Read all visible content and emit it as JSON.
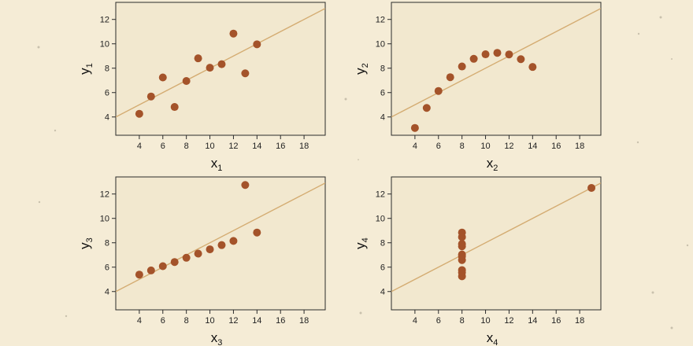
{
  "chart_data": [
    {
      "type": "scatter",
      "xlabel": "x",
      "xlabel_sub": "1",
      "ylabel": "y",
      "ylabel_sub": "1",
      "xlim": [
        2,
        19.8
      ],
      "ylim": [
        2.5,
        13.4
      ],
      "xticks": [
        4,
        6,
        8,
        10,
        12,
        14,
        16,
        18
      ],
      "yticks": [
        4,
        6,
        8,
        10,
        12
      ],
      "x": [
        10,
        8,
        13,
        9,
        11,
        14,
        6,
        4,
        12,
        7,
        5
      ],
      "y": [
        8.04,
        6.95,
        7.58,
        8.81,
        8.33,
        9.96,
        7.24,
        4.26,
        10.84,
        4.82,
        5.68
      ],
      "fit": {
        "intercept": 3.0,
        "slope": 0.5
      }
    },
    {
      "type": "scatter",
      "xlabel": "x",
      "xlabel_sub": "2",
      "ylabel": "y",
      "ylabel_sub": "2",
      "xlim": [
        2,
        19.8
      ],
      "ylim": [
        2.5,
        13.4
      ],
      "xticks": [
        4,
        6,
        8,
        10,
        12,
        14,
        16,
        18
      ],
      "yticks": [
        4,
        6,
        8,
        10,
        12
      ],
      "x": [
        10,
        8,
        13,
        9,
        11,
        14,
        6,
        4,
        12,
        7,
        5
      ],
      "y": [
        9.14,
        8.14,
        8.74,
        8.77,
        9.26,
        8.1,
        6.13,
        3.1,
        9.13,
        7.26,
        4.74
      ],
      "fit": {
        "intercept": 3.0,
        "slope": 0.5
      }
    },
    {
      "type": "scatter",
      "xlabel": "x",
      "xlabel_sub": "3",
      "ylabel": "y",
      "ylabel_sub": "3",
      "xlim": [
        2,
        19.8
      ],
      "ylim": [
        2.5,
        13.4
      ],
      "xticks": [
        4,
        6,
        8,
        10,
        12,
        14,
        16,
        18
      ],
      "yticks": [
        4,
        6,
        8,
        10,
        12
      ],
      "x": [
        10,
        8,
        13,
        9,
        11,
        14,
        6,
        4,
        12,
        7,
        5
      ],
      "y": [
        7.46,
        6.77,
        12.74,
        7.11,
        7.81,
        8.84,
        6.08,
        5.39,
        8.15,
        6.42,
        5.73
      ],
      "fit": {
        "intercept": 3.0,
        "slope": 0.5
      }
    },
    {
      "type": "scatter",
      "xlabel": "x",
      "xlabel_sub": "4",
      "ylabel": "y",
      "ylabel_sub": "4",
      "xlim": [
        2,
        19.8
      ],
      "ylim": [
        2.5,
        13.4
      ],
      "xticks": [
        4,
        6,
        8,
        10,
        12,
        14,
        16,
        18
      ],
      "yticks": [
        4,
        6,
        8,
        10,
        12
      ],
      "x": [
        8,
        8,
        8,
        8,
        8,
        8,
        8,
        19,
        8,
        8,
        8
      ],
      "y": [
        6.58,
        5.76,
        7.71,
        8.84,
        8.47,
        7.04,
        5.25,
        12.5,
        5.56,
        7.91,
        6.89
      ],
      "fit": {
        "intercept": 3.0,
        "slope": 0.5
      }
    }
  ],
  "colors": {
    "background": "#f5ecd6",
    "panel": "#f2e8cf",
    "point": "#a4532a",
    "fit_line": "#d4ac72",
    "axis": "#2b2b2b"
  }
}
